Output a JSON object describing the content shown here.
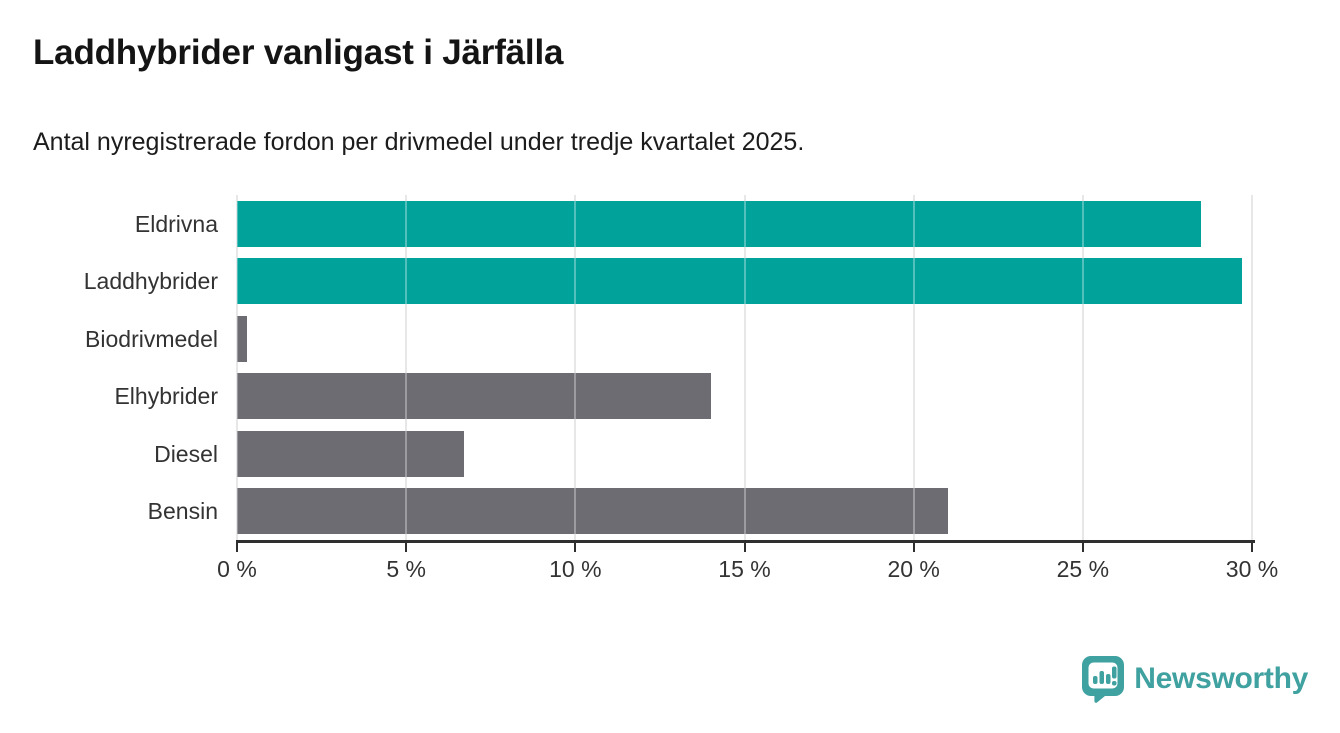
{
  "title": "Laddhybrider vanligast i Järfälla",
  "subtitle": "Antal nyregistrerade fordon per drivmedel under tredje kvartalet 2025.",
  "chart_data": {
    "type": "bar",
    "orientation": "horizontal",
    "title": "Laddhybrider vanligast i Järfälla",
    "subtitle": "Antal nyregistrerade fordon per drivmedel under tredje kvartalet 2025.",
    "categories": [
      "Eldrivna",
      "Laddhybrider",
      "Biodrivmedel",
      "Elhybrider",
      "Diesel",
      "Bensin"
    ],
    "values": [
      28.5,
      29.7,
      0.3,
      14.0,
      6.7,
      21.0
    ],
    "unit": "%",
    "highlighted": [
      true,
      true,
      false,
      false,
      false,
      false
    ],
    "highlight_color": "#00a29a",
    "default_color": "#6c6c72",
    "xlim": [
      0,
      30
    ],
    "x_ticks": [
      0,
      5,
      10,
      15,
      20,
      25,
      30
    ],
    "x_tick_labels": [
      "0 %",
      "5 %",
      "10 %",
      "15 %",
      "20 %",
      "25 %",
      "30 %"
    ],
    "grid": "vertical",
    "gridline_color": "#dcdcdc",
    "axis_color": "#2f2f2f",
    "legend": "none"
  },
  "branding": {
    "logo_text": "Newsworthy",
    "logo_color": "#3fa1a0"
  }
}
